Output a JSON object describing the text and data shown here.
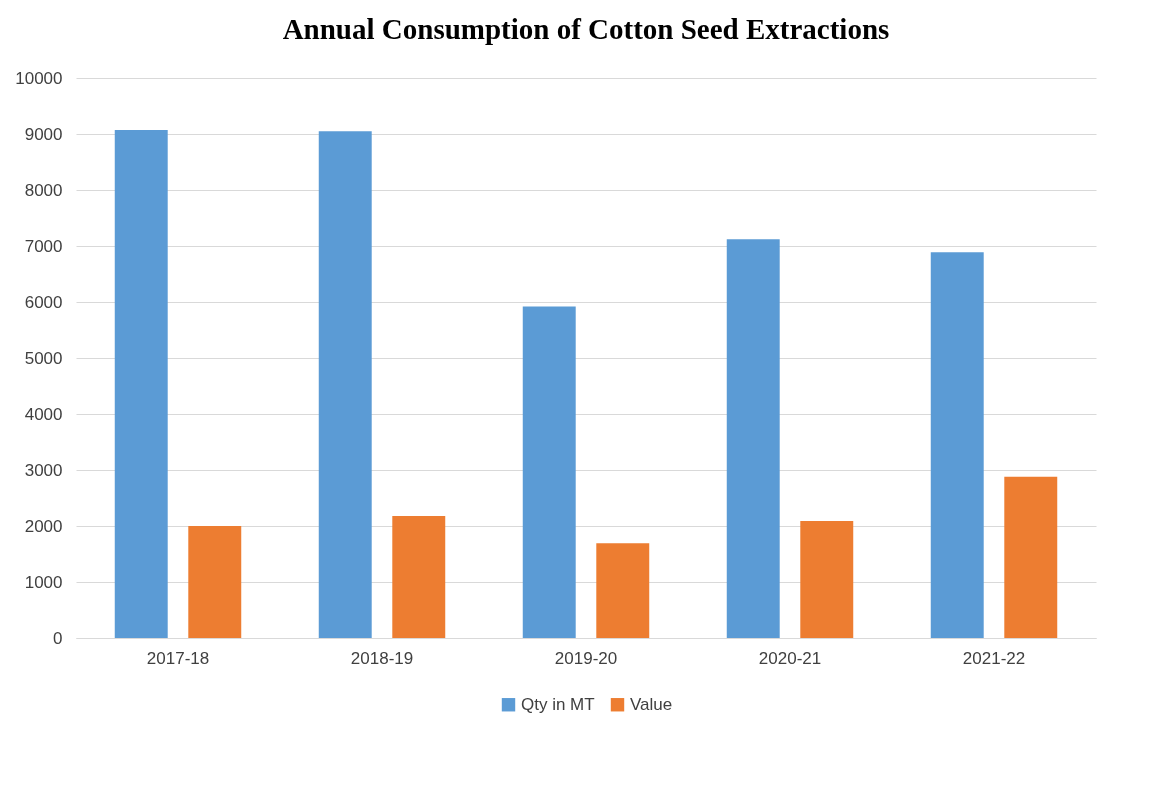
{
  "chart_data": {
    "type": "bar",
    "title": "Annual Consumption of Cotton Seed Extractions",
    "categories": [
      "2017-18",
      "2018-19",
      "2019-20",
      "2020-21",
      "2021-22"
    ],
    "series": [
      {
        "name": "Qty in MT",
        "color": "#5b9bd5",
        "values": [
          9070,
          9050,
          5920,
          7120,
          6890
        ]
      },
      {
        "name": "Value",
        "color": "#ed7d31",
        "values": [
          2000,
          2180,
          1690,
          2090,
          2880
        ]
      }
    ],
    "ylim": [
      0,
      10000
    ],
    "yticks": [
      0,
      1000,
      2000,
      3000,
      4000,
      5000,
      6000,
      7000,
      8000,
      9000,
      10000
    ],
    "grid": "y",
    "legend": "bottom"
  }
}
